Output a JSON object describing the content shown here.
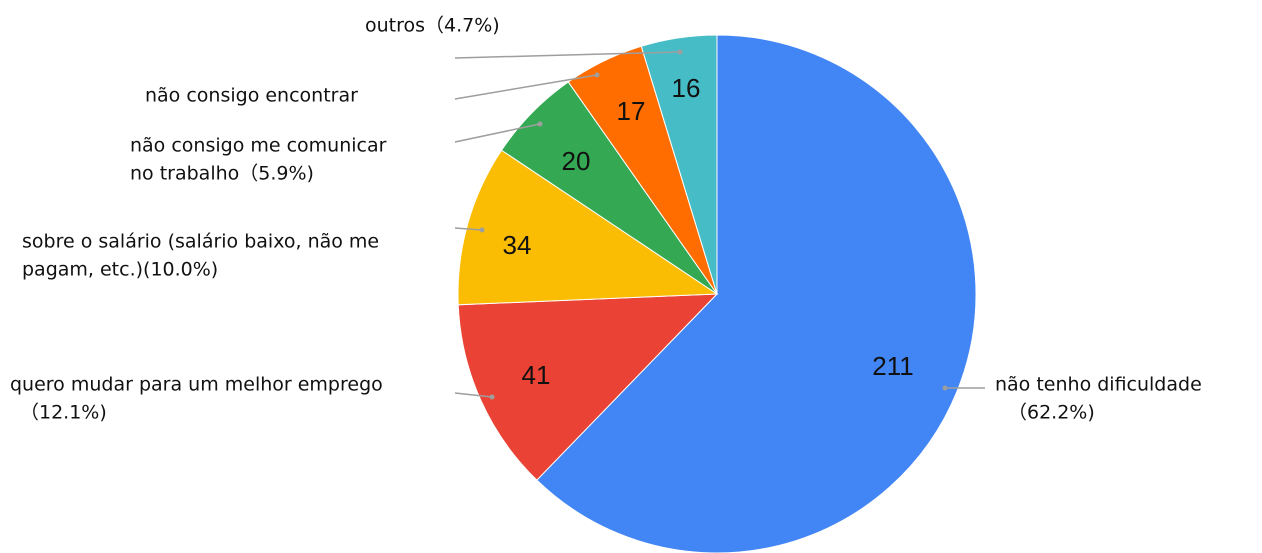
{
  "chart_data": {
    "type": "pie",
    "categories": [
      [
        "não tenho dificuldade",
        "（62.2%)"
      ],
      [
        "quero mudar para um melhor emprego",
        "（12.1%)"
      ],
      [
        "sobre o salário (salário baixo, não me",
        "pagam, etc.)(10.0%)"
      ],
      [
        "não consigo me comunicar",
        "no trabalho（5.9%)"
      ],
      [
        "não consigo encontrar"
      ],
      [
        "outros（4.7%)"
      ]
    ],
    "values": [
      211,
      41,
      34,
      20,
      17,
      16
    ],
    "colors": [
      "#4285f4",
      "#ea4335",
      "#fbbc04",
      "#34a853",
      "#ff6d01",
      "#46bdc6"
    ]
  }
}
